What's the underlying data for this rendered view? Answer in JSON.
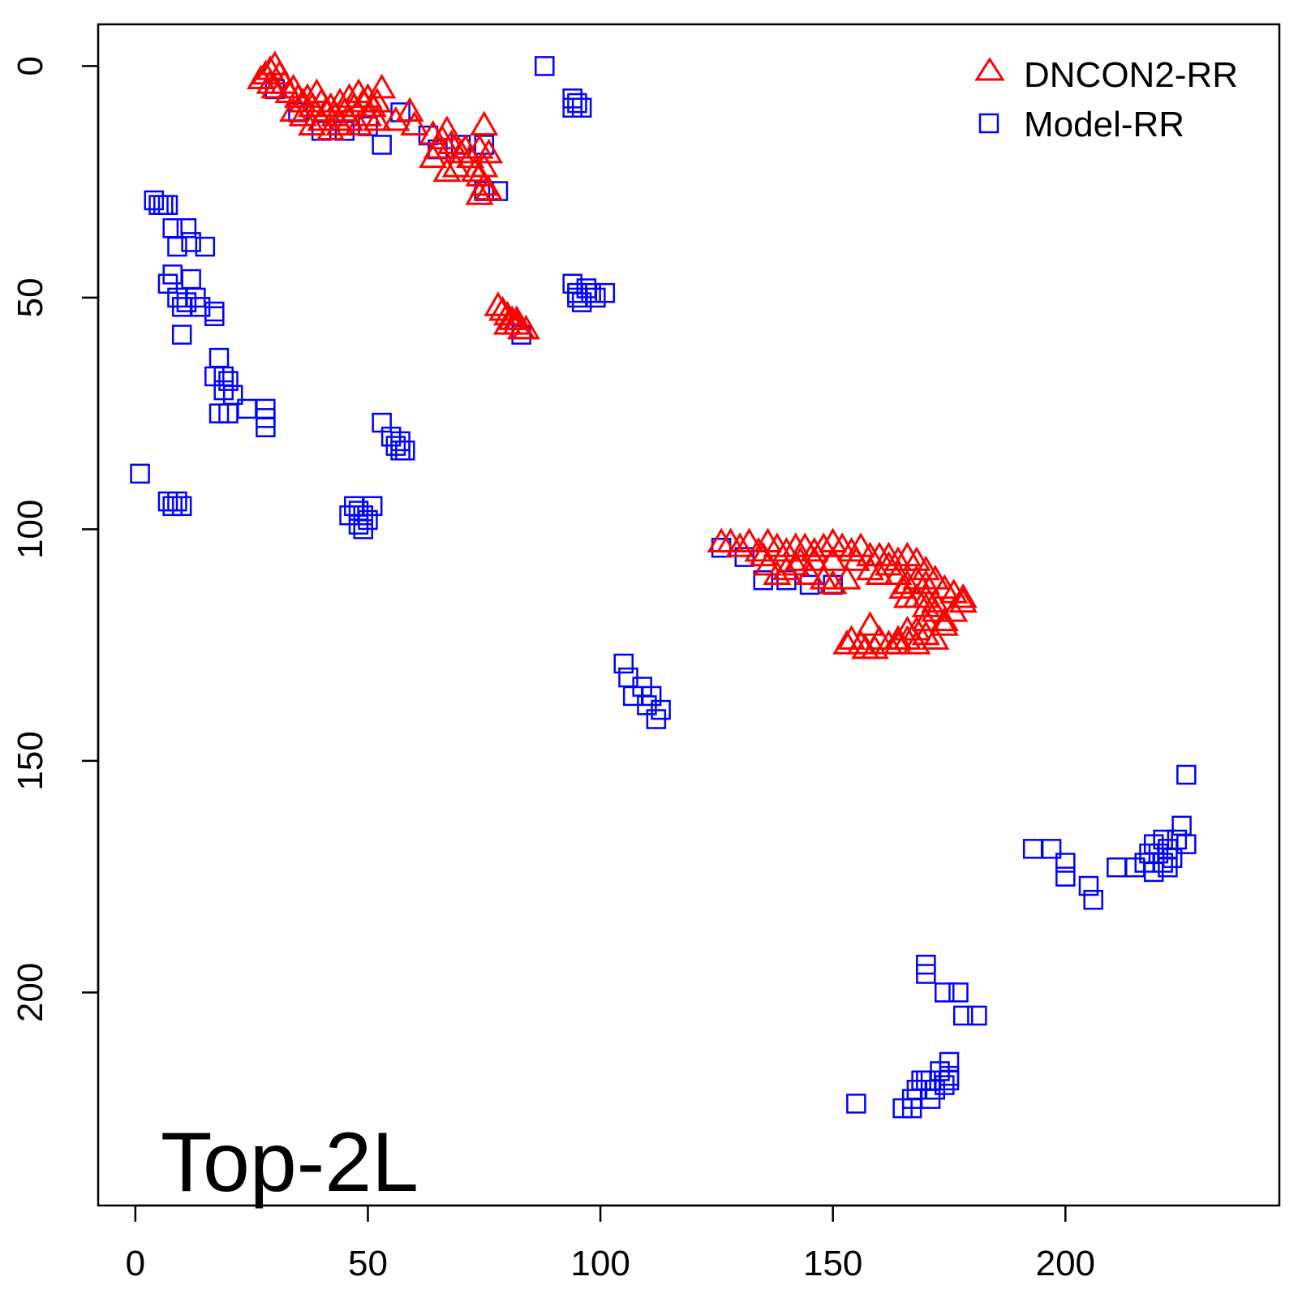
{
  "chart_data": {
    "type": "scatter",
    "title": "",
    "xlabel": "",
    "ylabel": "",
    "xlim": [
      -8,
      246
    ],
    "ylim": [
      246,
      -9
    ],
    "y_axis_inverted": true,
    "x_ticks": [
      0,
      50,
      100,
      150,
      200
    ],
    "y_ticks": [
      0,
      50,
      100,
      150,
      200
    ],
    "x_tick_labels": [
      "0",
      "50",
      "100",
      "150",
      "200"
    ],
    "y_tick_labels": [
      "0",
      "50",
      "100",
      "150",
      "200"
    ],
    "grid": false,
    "legend_position": "top-right",
    "annotation": "Top-2L",
    "series": [
      {
        "name": "DNCON2-RR",
        "marker": "triangle",
        "color": "#ff0000",
        "points": [
          [
            27,
            3
          ],
          [
            28,
            2
          ],
          [
            29,
            1
          ],
          [
            30,
            0
          ],
          [
            31,
            2
          ],
          [
            29,
            4
          ],
          [
            30,
            5
          ],
          [
            32,
            4
          ],
          [
            33,
            6
          ],
          [
            34,
            5
          ],
          [
            35,
            7
          ],
          [
            36,
            8
          ],
          [
            37,
            7
          ],
          [
            38,
            9
          ],
          [
            39,
            6
          ],
          [
            40,
            8
          ],
          [
            41,
            10
          ],
          [
            42,
            9
          ],
          [
            43,
            11
          ],
          [
            44,
            8
          ],
          [
            45,
            10
          ],
          [
            46,
            7
          ],
          [
            47,
            9
          ],
          [
            48,
            6
          ],
          [
            49,
            8
          ],
          [
            50,
            7
          ],
          [
            51,
            9
          ],
          [
            52,
            8
          ],
          [
            53,
            5
          ],
          [
            46,
            12
          ],
          [
            48,
            13
          ],
          [
            50,
            11
          ],
          [
            44,
            13
          ],
          [
            40,
            12
          ],
          [
            38,
            13
          ],
          [
            36,
            11
          ],
          [
            34,
            10
          ],
          [
            42,
            14
          ],
          [
            52,
            12
          ],
          [
            56,
            12
          ],
          [
            59,
            10
          ],
          [
            60,
            13
          ],
          [
            64,
            15
          ],
          [
            66,
            16
          ],
          [
            67,
            14
          ],
          [
            68,
            17
          ],
          [
            70,
            19
          ],
          [
            69,
            22
          ],
          [
            72,
            20
          ],
          [
            74,
            18
          ],
          [
            75,
            13
          ],
          [
            76,
            19
          ],
          [
            75,
            22
          ],
          [
            74,
            24
          ],
          [
            75,
            26
          ],
          [
            76,
            27
          ],
          [
            74,
            28
          ],
          [
            73,
            23
          ],
          [
            71,
            18
          ],
          [
            65,
            18
          ],
          [
            64,
            20
          ],
          [
            67,
            23
          ],
          [
            78,
            52
          ],
          [
            79,
            53
          ],
          [
            80,
            54
          ],
          [
            81,
            55
          ],
          [
            82,
            56
          ],
          [
            83,
            57
          ],
          [
            84,
            57
          ],
          [
            80,
            56
          ],
          [
            82,
            55
          ],
          [
            126,
            103
          ],
          [
            128,
            103
          ],
          [
            130,
            104
          ],
          [
            132,
            103
          ],
          [
            134,
            105
          ],
          [
            136,
            103
          ],
          [
            138,
            104
          ],
          [
            140,
            105
          ],
          [
            142,
            104
          ],
          [
            144,
            104
          ],
          [
            146,
            105
          ],
          [
            148,
            104
          ],
          [
            150,
            103
          ],
          [
            152,
            104
          ],
          [
            154,
            105
          ],
          [
            156,
            104
          ],
          [
            158,
            106
          ],
          [
            160,
            106
          ],
          [
            162,
            106
          ],
          [
            164,
            107
          ],
          [
            166,
            106
          ],
          [
            168,
            107
          ],
          [
            170,
            109
          ],
          [
            172,
            111
          ],
          [
            174,
            113
          ],
          [
            176,
            114
          ],
          [
            178,
            115
          ],
          [
            136,
            108
          ],
          [
            138,
            110
          ],
          [
            140,
            109
          ],
          [
            142,
            108
          ],
          [
            145,
            110
          ],
          [
            148,
            111
          ],
          [
            150,
            112
          ],
          [
            153,
            111
          ],
          [
            155,
            107
          ],
          [
            158,
            109
          ],
          [
            160,
            110
          ],
          [
            146,
            107
          ],
          [
            143,
            107
          ],
          [
            150,
            107
          ],
          [
            135,
            106
          ],
          [
            162,
            108
          ],
          [
            164,
            110
          ],
          [
            166,
            112
          ],
          [
            168,
            111
          ],
          [
            170,
            112
          ],
          [
            168,
            115
          ],
          [
            170,
            117
          ],
          [
            172,
            118
          ],
          [
            174,
            120
          ],
          [
            170,
            120
          ],
          [
            168,
            122
          ],
          [
            166,
            122
          ],
          [
            164,
            124
          ],
          [
            162,
            125
          ],
          [
            160,
            124
          ],
          [
            158,
            121
          ],
          [
            156,
            125
          ],
          [
            154,
            124
          ],
          [
            153,
            125
          ],
          [
            157,
            126
          ],
          [
            159,
            126
          ],
          [
            164,
            125
          ],
          [
            166,
            124
          ],
          [
            168,
            125
          ],
          [
            170,
            123
          ],
          [
            172,
            124
          ],
          [
            174,
            121
          ],
          [
            176,
            118
          ],
          [
            178,
            116
          ],
          [
            172,
            116
          ],
          [
            170,
            115
          ],
          [
            166,
            115
          ],
          [
            165,
            113
          ]
        ]
      },
      {
        "name": "Model-RR",
        "marker": "square",
        "color": "#0000ff",
        "points": [
          [
            88,
            0
          ],
          [
            94,
            7
          ],
          [
            95,
            8
          ],
          [
            96,
            9
          ],
          [
            94,
            9
          ],
          [
            4,
            29
          ],
          [
            5,
            30
          ],
          [
            6,
            30
          ],
          [
            7,
            30
          ],
          [
            8,
            35
          ],
          [
            9,
            39
          ],
          [
            11,
            35
          ],
          [
            12,
            38
          ],
          [
            15,
            39
          ],
          [
            7,
            47
          ],
          [
            8,
            45
          ],
          [
            9,
            50
          ],
          [
            10,
            52
          ],
          [
            11,
            51
          ],
          [
            12,
            46
          ],
          [
            13,
            50
          ],
          [
            14,
            52
          ],
          [
            10,
            58
          ],
          [
            17,
            53
          ],
          [
            17,
            54
          ],
          [
            18,
            63
          ],
          [
            17,
            67
          ],
          [
            19,
            67
          ],
          [
            20,
            68
          ],
          [
            19,
            70
          ],
          [
            21,
            71
          ],
          [
            18,
            75
          ],
          [
            20,
            75
          ],
          [
            24,
            74
          ],
          [
            28,
            74
          ],
          [
            28,
            76
          ],
          [
            28,
            78
          ],
          [
            1,
            88
          ],
          [
            7,
            94
          ],
          [
            8,
            95
          ],
          [
            9,
            94
          ],
          [
            10,
            95
          ],
          [
            53,
            77
          ],
          [
            55,
            80
          ],
          [
            57,
            81
          ],
          [
            56,
            82
          ],
          [
            57,
            83
          ],
          [
            58,
            83
          ],
          [
            46,
            97
          ],
          [
            47,
            95
          ],
          [
            48,
            96
          ],
          [
            49,
            97
          ],
          [
            50,
            98
          ],
          [
            49,
            100
          ],
          [
            51,
            95
          ],
          [
            48,
            99
          ],
          [
            94,
            47
          ],
          [
            95,
            50
          ],
          [
            96,
            51
          ],
          [
            97,
            48
          ],
          [
            98,
            49
          ],
          [
            99,
            50
          ],
          [
            101,
            49
          ],
          [
            95,
            49
          ],
          [
            30,
            5
          ],
          [
            35,
            10
          ],
          [
            40,
            14
          ],
          [
            45,
            14
          ],
          [
            50,
            13
          ],
          [
            53,
            17
          ],
          [
            57,
            10
          ],
          [
            63,
            15
          ],
          [
            65,
            18
          ],
          [
            70,
            17
          ],
          [
            75,
            17
          ],
          [
            75,
            27
          ],
          [
            78,
            27
          ],
          [
            83,
            58
          ],
          [
            126,
            104
          ],
          [
            131,
            106
          ],
          [
            135,
            111
          ],
          [
            140,
            111
          ],
          [
            145,
            112
          ],
          [
            150,
            112
          ],
          [
            105,
            129
          ],
          [
            106,
            132
          ],
          [
            107,
            136
          ],
          [
            109,
            134
          ],
          [
            110,
            138
          ],
          [
            111,
            136
          ],
          [
            113,
            139
          ],
          [
            112,
            141
          ],
          [
            193,
            169
          ],
          [
            197,
            169
          ],
          [
            200,
            172
          ],
          [
            200,
            175
          ],
          [
            205,
            177
          ],
          [
            206,
            180
          ],
          [
            211,
            173
          ],
          [
            215,
            173
          ],
          [
            217,
            172
          ],
          [
            218,
            170
          ],
          [
            219,
            168
          ],
          [
            220,
            170
          ],
          [
            221,
            172
          ],
          [
            222,
            173
          ],
          [
            223,
            171
          ],
          [
            224,
            167
          ],
          [
            225,
            164
          ],
          [
            226,
            153
          ],
          [
            226,
            168
          ],
          [
            221,
            167
          ],
          [
            219,
            174
          ],
          [
            222,
            169
          ],
          [
            170,
            194
          ],
          [
            170,
            196
          ],
          [
            174,
            200
          ],
          [
            177,
            200
          ],
          [
            178,
            205
          ],
          [
            181,
            205
          ],
          [
            175,
            215
          ],
          [
            175,
            218
          ],
          [
            175,
            219
          ],
          [
            174,
            220
          ],
          [
            172,
            221
          ],
          [
            171,
            223
          ],
          [
            170,
            219
          ],
          [
            168,
            221
          ],
          [
            167,
            223
          ],
          [
            167,
            225
          ],
          [
            165,
            225
          ],
          [
            155,
            224
          ],
          [
            169,
            219
          ],
          [
            171,
            219
          ],
          [
            173,
            217
          ]
        ]
      }
    ]
  }
}
